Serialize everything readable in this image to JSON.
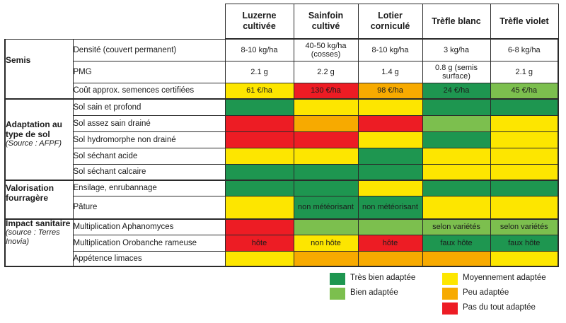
{
  "colors": {
    "dark_green": "#1e9650",
    "light_green": "#7cbf4e",
    "yellow": "#fde600",
    "orange": "#f7aa00",
    "red": "#ed1c24",
    "white": "#ffffff"
  },
  "columns": {
    "luzerne": "Luzerne cultivée",
    "sainfoin": "Sainfoin cultivé",
    "lotier": "Lotier corniculé",
    "trefle_blanc": "Trèfle blanc",
    "trefle_violet": "Trèfle violet"
  },
  "sections": {
    "semis": {
      "title": "Semis"
    },
    "adaptation": {
      "title": "Adaptation au type de sol",
      "source": "(Source : AFPF)"
    },
    "valorisation": {
      "title": "Valorisation fourragère"
    },
    "impact": {
      "title": "Impact sanitaire",
      "source": "(source : Terres Inovia)"
    }
  },
  "rows": [
    {
      "label": "Densité (couvert permanent)",
      "cells": [
        {
          "text": "8-10 kg/ha",
          "color": "white"
        },
        {
          "text": "40-50 kg/ha (cosses)",
          "color": "white"
        },
        {
          "text": "8-10 kg/ha",
          "color": "white"
        },
        {
          "text": "3 kg/ha",
          "color": "white"
        },
        {
          "text": "6-8 kg/ha",
          "color": "white"
        }
      ]
    },
    {
      "label": "PMG",
      "cells": [
        {
          "text": "2.1 g",
          "color": "white"
        },
        {
          "text": "2.2 g",
          "color": "white"
        },
        {
          "text": "1.4 g",
          "color": "white"
        },
        {
          "text": "0.8 g (semis surface)",
          "color": "white"
        },
        {
          "text": "2.1 g",
          "color": "white"
        }
      ]
    },
    {
      "label": "Coût approx. semences certifiées",
      "cells": [
        {
          "text": "61 €/ha",
          "color": "yellow"
        },
        {
          "text": "130 €/ha",
          "color": "red"
        },
        {
          "text": "98 €/ha",
          "color": "orange"
        },
        {
          "text": "24 €/ha",
          "color": "dark_green"
        },
        {
          "text": "45 €/ha",
          "color": "light_green"
        }
      ]
    },
    {
      "label": "Sol sain et profond",
      "cells": [
        {
          "text": "",
          "color": "dark_green"
        },
        {
          "text": "",
          "color": "yellow"
        },
        {
          "text": "",
          "color": "yellow"
        },
        {
          "text": "",
          "color": "dark_green"
        },
        {
          "text": "",
          "color": "dark_green"
        }
      ]
    },
    {
      "label": "Sol assez sain drainé",
      "cells": [
        {
          "text": "",
          "color": "red"
        },
        {
          "text": "",
          "color": "orange"
        },
        {
          "text": "",
          "color": "red"
        },
        {
          "text": "",
          "color": "light_green"
        },
        {
          "text": "",
          "color": "yellow"
        }
      ]
    },
    {
      "label": "Sol hydromorphe non drainé",
      "cells": [
        {
          "text": "",
          "color": "red"
        },
        {
          "text": "",
          "color": "red"
        },
        {
          "text": "",
          "color": "yellow"
        },
        {
          "text": "",
          "color": "dark_green"
        },
        {
          "text": "",
          "color": "yellow"
        }
      ]
    },
    {
      "label": "Sol séchant acide",
      "cells": [
        {
          "text": "",
          "color": "yellow"
        },
        {
          "text": "",
          "color": "yellow"
        },
        {
          "text": "",
          "color": "dark_green"
        },
        {
          "text": "",
          "color": "yellow"
        },
        {
          "text": "",
          "color": "yellow"
        }
      ]
    },
    {
      "label": "Sol séchant calcaire",
      "cells": [
        {
          "text": "",
          "color": "dark_green"
        },
        {
          "text": "",
          "color": "dark_green"
        },
        {
          "text": "",
          "color": "dark_green"
        },
        {
          "text": "",
          "color": "yellow"
        },
        {
          "text": "",
          "color": "yellow"
        }
      ]
    },
    {
      "label": "Ensilage, enrubannage",
      "cells": [
        {
          "text": "",
          "color": "dark_green"
        },
        {
          "text": "",
          "color": "dark_green"
        },
        {
          "text": "",
          "color": "yellow"
        },
        {
          "text": "",
          "color": "dark_green"
        },
        {
          "text": "",
          "color": "dark_green"
        }
      ]
    },
    {
      "label": "Pâture",
      "cells": [
        {
          "text": "",
          "color": "yellow"
        },
        {
          "text": "non météorisant",
          "color": "dark_green"
        },
        {
          "text": "non météorisant",
          "color": "dark_green"
        },
        {
          "text": "",
          "color": "yellow"
        },
        {
          "text": "",
          "color": "yellow"
        }
      ]
    },
    {
      "label": "Multiplication Aphanomyces",
      "cells": [
        {
          "text": "",
          "color": "red"
        },
        {
          "text": "",
          "color": "light_green"
        },
        {
          "text": "",
          "color": "light_green"
        },
        {
          "text": "selon variétés",
          "color": "light_green"
        },
        {
          "text": "selon variétés",
          "color": "light_green"
        }
      ]
    },
    {
      "label": "Multiplication Orobanche rameuse",
      "cells": [
        {
          "text": "hôte",
          "color": "red"
        },
        {
          "text": "non hôte",
          "color": "yellow"
        },
        {
          "text": "hôte",
          "color": "red"
        },
        {
          "text": "faux hôte",
          "color": "dark_green"
        },
        {
          "text": "faux hôte",
          "color": "dark_green"
        }
      ]
    },
    {
      "label": "Appétence limaces",
      "cells": [
        {
          "text": "",
          "color": "yellow"
        },
        {
          "text": "",
          "color": "orange"
        },
        {
          "text": "",
          "color": "orange"
        },
        {
          "text": "",
          "color": "orange"
        },
        {
          "text": "",
          "color": "yellow"
        }
      ]
    }
  ],
  "legend": [
    {
      "label": "Très bien adaptée",
      "color": "dark_green"
    },
    {
      "label": "Bien adaptée",
      "color": "light_green"
    },
    {
      "label": "Moyennement adaptée",
      "color": "yellow"
    },
    {
      "label": "Peu adaptée",
      "color": "orange"
    },
    {
      "label": "Pas du tout adaptée",
      "color": "red"
    }
  ]
}
